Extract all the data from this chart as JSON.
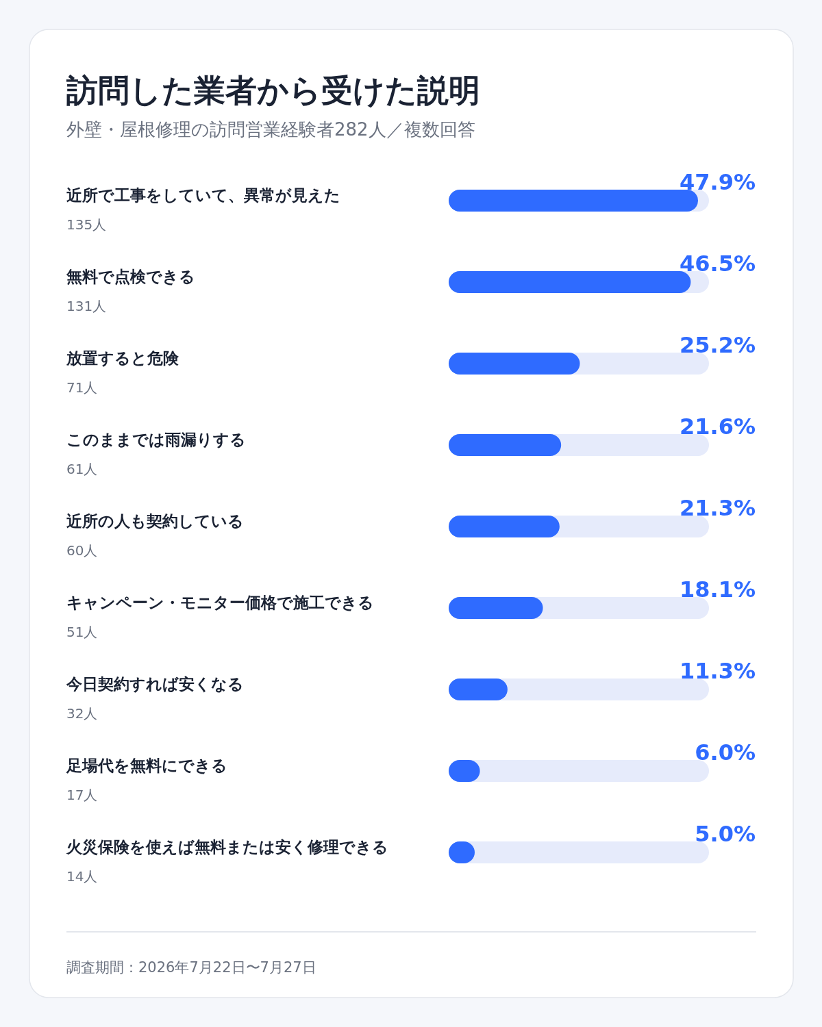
{
  "chart_data": {
    "type": "bar",
    "orientation": "horizontal",
    "title": "訪問した業者から受けた説明",
    "subtitle": "外壁・屋根修理の訪問営業経験者282人／複数回答",
    "categories": [
      "近所で工事をしていて、異常が見えた",
      "無料で点検できる",
      "放置すると危険",
      "このままでは雨漏りする",
      "近所の人も契約している",
      "キャンペーン・モニター価格で施工できる",
      "今日契約すれば安くなる",
      "足場代を無料にできる",
      "火災保険を使えば無料または安く修理できる"
    ],
    "values": [
      47.9,
      46.5,
      25.2,
      21.6,
      21.3,
      18.1,
      11.3,
      6.0,
      5.0
    ],
    "value_labels": [
      "47.9%",
      "46.5%",
      "25.2%",
      "21.6%",
      "21.3%",
      "18.1%",
      "11.3%",
      "6.0%",
      "5.0%"
    ],
    "color": "#2f6bff",
    "xlim": [
      0,
      50
    ],
    "annotations": [
      "135人",
      "131人",
      "71人",
      "61人",
      "60人",
      "51人",
      "32人",
      "17人",
      "14人",
      "調査期間：2026年7月22日〜7月27日"
    ]
  }
}
